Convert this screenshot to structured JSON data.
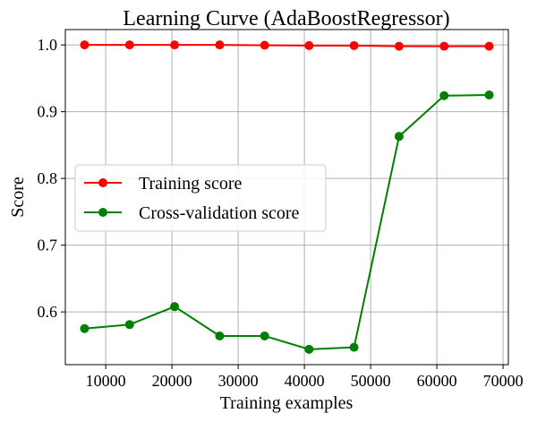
{
  "chart_data": {
    "type": "line",
    "title": "Learning Curve (AdaBoostRegressor)",
    "xlabel": "Training examples",
    "ylabel": "Score",
    "xlim": [
      3900,
      70800
    ],
    "ylim": [
      0.521,
      1.023
    ],
    "xticks": [
      10000,
      20000,
      30000,
      40000,
      50000,
      60000,
      70000
    ],
    "xtick_labels": [
      "10000",
      "20000",
      "30000",
      "40000",
      "50000",
      "60000",
      "70000"
    ],
    "yticks": [
      0.6,
      0.7,
      0.8,
      0.9,
      1.0
    ],
    "ytick_labels": [
      "0.6",
      "0.7",
      "0.8",
      "0.9",
      "1.0"
    ],
    "grid": true,
    "legend": "center-left",
    "x": [
      6800,
      13600,
      20400,
      27200,
      34000,
      40700,
      47500,
      54300,
      61100,
      67900
    ],
    "series": [
      {
        "name": "Training score",
        "color": "#ff0000",
        "marker": "circle",
        "values": [
          1.0,
          1.0,
          1.0,
          1.0,
          0.9995,
          0.999,
          0.999,
          0.998,
          0.998,
          0.998
        ]
      },
      {
        "name": "Cross-validation score",
        "color": "#008000",
        "marker": "circle",
        "values": [
          0.575,
          0.581,
          0.608,
          0.564,
          0.564,
          0.544,
          0.547,
          0.863,
          0.924,
          0.925
        ]
      }
    ]
  }
}
